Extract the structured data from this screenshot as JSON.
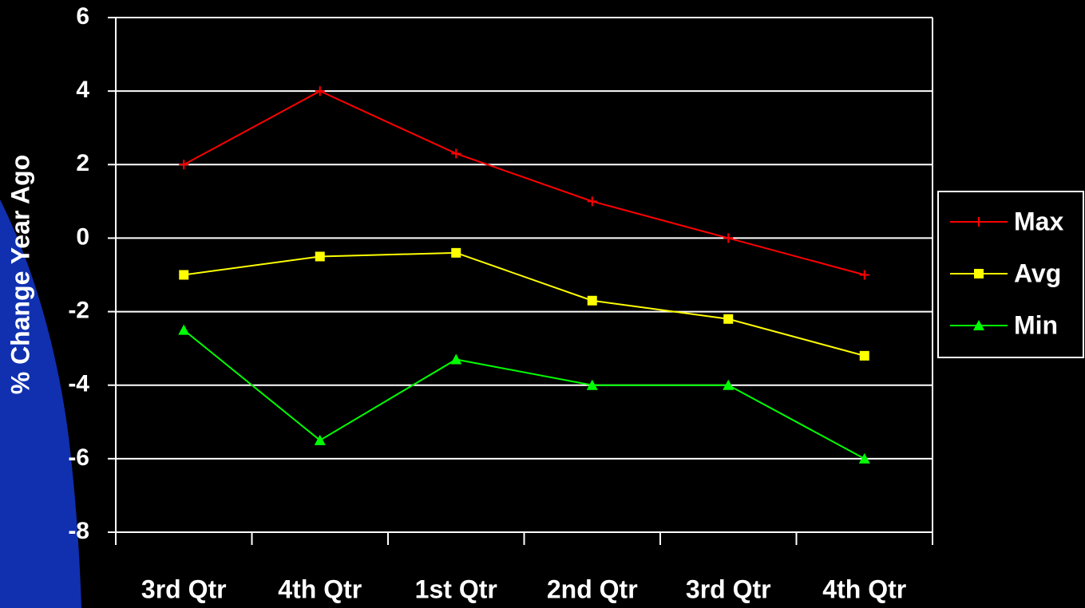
{
  "chart_data": {
    "type": "line",
    "y_label": "% Change Year Ago",
    "categories": [
      "3rd Qtr",
      "4th Qtr",
      "1st Qtr",
      "2nd Qtr",
      "3rd Qtr",
      "4th Qtr"
    ],
    "series": [
      {
        "name": "Max",
        "color": "#ff0000",
        "marker": "plus",
        "values": [
          2,
          4,
          2.3,
          1,
          0,
          -1
        ]
      },
      {
        "name": "Avg",
        "color": "#ffff00",
        "marker": "square",
        "values": [
          -1,
          -0.5,
          -0.4,
          -1.7,
          -2.2,
          -3.2
        ]
      },
      {
        "name": "Min",
        "color": "#00ff00",
        "marker": "triangle",
        "values": [
          -2.5,
          -5.5,
          -3.3,
          -4,
          -4,
          -6
        ]
      }
    ],
    "ylim": [
      -8,
      6
    ],
    "yticks": [
      -8,
      -6,
      -4,
      -2,
      0,
      2,
      4,
      6
    ],
    "grid": true,
    "legend": "right"
  }
}
